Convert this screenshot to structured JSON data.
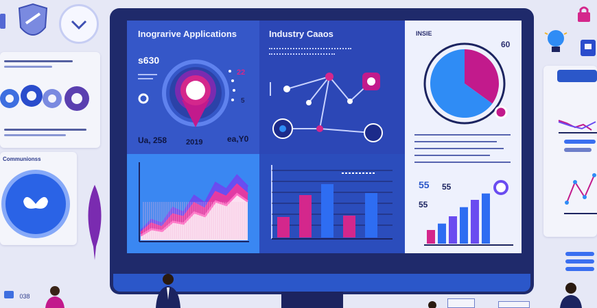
{
  "panels": {
    "integrative": {
      "title": "Inograrive Applications",
      "value_top": "s630",
      "value_bottom_left": "Ua, 258",
      "value_bottom_mid": "2019",
      "value_bottom_right": "ea,Y0",
      "value_right_1": "22",
      "value_right_2": "5"
    },
    "industry": {
      "title": "Industry Caaos"
    },
    "pie": {
      "label_left": "INSIE",
      "label_right": "60",
      "slices": [
        {
          "name": "magenta",
          "value": 35,
          "color": "#c21a8c"
        },
        {
          "name": "blue",
          "value": 65,
          "color": "#2f8cf5"
        }
      ]
    },
    "small_codes": {
      "code_1": "55",
      "code_2": "55",
      "code_3": "55"
    },
    "left_card": {
      "heading": "Communionss",
      "badge": "038"
    }
  },
  "chart_data": [
    {
      "type": "area",
      "series": [
        {
          "values": [
            10,
            22,
            18,
            35,
            30,
            48,
            40,
            62,
            55,
            70,
            58
          ]
        },
        {
          "values": [
            8,
            18,
            14,
            28,
            25,
            40,
            34,
            52,
            47,
            60,
            50
          ]
        },
        {
          "values": [
            5,
            12,
            10,
            20,
            18,
            30,
            26,
            42,
            38,
            50,
            42
          ]
        }
      ],
      "colors": [
        "#6a4cf0",
        "#e83a9f",
        "#ff6fc5"
      ]
    },
    {
      "type": "bar",
      "values": [
        30,
        62,
        78,
        32,
        65
      ],
      "colors": [
        "#d4278c",
        "#d4278c",
        "#2e6df2",
        "#d4278c",
        "#2e6df2"
      ]
    },
    {
      "type": "bar",
      "values": [
        15,
        22,
        30,
        40,
        48,
        55
      ],
      "colors": [
        "#d4278c",
        "#2e6df2",
        "#6a4cf0",
        "#2e6df2",
        "#6a4cf0",
        "#2e6df2"
      ]
    }
  ],
  "colors": {
    "monitor": "#1f2a6b",
    "panel_blue": "#3557c8",
    "panel_dark": "#2c47b6",
    "accent_magenta": "#c21a8c",
    "accent_blue": "#2f8cf5"
  }
}
